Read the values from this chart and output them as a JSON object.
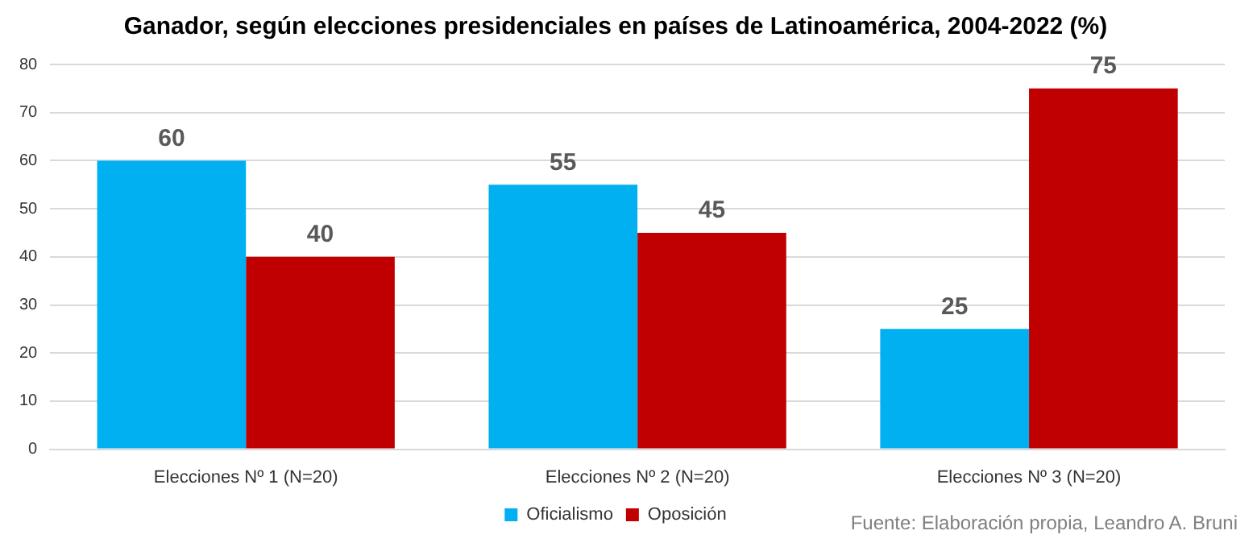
{
  "chart_data": {
    "type": "bar",
    "title": "Ganador, según elecciones presidenciales en países de Latinoamérica, 2004-2022 (%)",
    "categories": [
      "Elecciones Nº 1 (N=20)",
      "Elecciones Nº 2 (N=20)",
      "Elecciones Nº 3 (N=20)"
    ],
    "series": [
      {
        "name": "Oficialismo",
        "color": "#00b0f0",
        "values": [
          60,
          55,
          25
        ]
      },
      {
        "name": "Oposición",
        "color": "#c00000",
        "values": [
          40,
          45,
          75
        ]
      }
    ],
    "ylim": [
      0,
      80
    ],
    "yticks": [
      0,
      10,
      20,
      30,
      40,
      50,
      60,
      70,
      80
    ],
    "grid": "y",
    "legend": "bottom",
    "data_labels": true,
    "annotations": [
      "Fuente: Elaboración propia, Leandro A. Bruni"
    ]
  }
}
